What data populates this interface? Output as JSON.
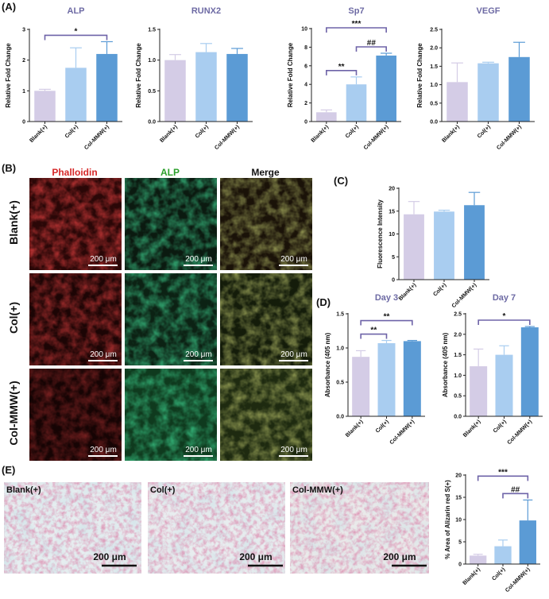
{
  "panels": {
    "A": "(A)",
    "B": "(B)",
    "C": "(C)",
    "D": "(D)",
    "E": "(E)"
  },
  "colors": {
    "blank": "#d4cce6",
    "col": "#a9cdf0",
    "colmmw": "#5b9bd5",
    "title": "#6d6aa4",
    "bracket": "#6e63a8",
    "red": "#d62728",
    "green": "#2ca02c"
  },
  "chart_data": [
    {
      "id": "alp",
      "type": "bar",
      "title": "ALP",
      "ylabel": "Relative Fold Change",
      "categories": [
        "Blank(+)",
        "Col(+)",
        "Col-MMW(+)"
      ],
      "values": [
        1.0,
        1.75,
        2.2
      ],
      "errors": [
        0.05,
        0.65,
        0.4
      ],
      "ylim": [
        0,
        3
      ],
      "yticks": [
        0,
        1,
        2,
        3
      ],
      "yticklabels": [
        "0",
        "1",
        "2",
        "3"
      ],
      "annotations": [
        {
          "from": 0,
          "to": 2,
          "label": "*"
        }
      ]
    },
    {
      "id": "runx2",
      "type": "bar",
      "title": "RUNX2",
      "ylabel": "Relative Fold Change",
      "categories": [
        "Blank(+)",
        "Col(+)",
        "Col-MMW(+)"
      ],
      "values": [
        1.0,
        1.13,
        1.1
      ],
      "errors": [
        0.09,
        0.14,
        0.09
      ],
      "ylim": [
        0,
        1.5
      ],
      "yticks": [
        0,
        0.5,
        1,
        1.5
      ],
      "yticklabels": [
        "0.0",
        "0.5",
        "1.0",
        "1.5"
      ],
      "annotations": []
    },
    {
      "id": "sp7",
      "type": "bar",
      "title": "Sp7",
      "ylabel": "Relative Fold Change",
      "categories": [
        "Blank(+)",
        "Col(+)",
        "Col-MMW(+)"
      ],
      "values": [
        1.0,
        4.0,
        7.1
      ],
      "errors": [
        0.25,
        0.8,
        0.25
      ],
      "ylim": [
        0,
        10
      ],
      "yticks": [
        0,
        2,
        4,
        6,
        8,
        10
      ],
      "yticklabels": [
        "0",
        "2",
        "4",
        "6",
        "8",
        "10"
      ],
      "annotations": [
        {
          "from": 0,
          "to": 2,
          "label": "***"
        },
        {
          "from": 0,
          "to": 1,
          "label": "**"
        },
        {
          "from": 1,
          "to": 2,
          "label": "##"
        }
      ]
    },
    {
      "id": "vegf",
      "type": "bar",
      "title": "VEGF",
      "ylabel": "Relative Fold Change",
      "categories": [
        "Blank(+)",
        "Col(+)",
        "Col-MMW(+)"
      ],
      "values": [
        1.07,
        1.58,
        1.75
      ],
      "errors": [
        0.52,
        0.03,
        0.4
      ],
      "ylim": [
        0,
        2.5
      ],
      "yticks": [
        0,
        0.5,
        1,
        1.5,
        2,
        2.5
      ],
      "yticklabels": [
        "0.0",
        "0.5",
        "1.0",
        "1.5",
        "2.0",
        "2.5"
      ],
      "annotations": []
    },
    {
      "id": "fluor",
      "type": "bar",
      "title": "",
      "ylabel": "Fluorescence Intensity",
      "categories": [
        "Blank(+)",
        "Col(+)",
        "Col-MMW(+)"
      ],
      "values": [
        14.3,
        14.9,
        16.3
      ],
      "errors": [
        2.8,
        0.3,
        2.8
      ],
      "ylim": [
        0,
        20
      ],
      "yticks": [
        0,
        5,
        10,
        15,
        20
      ],
      "yticklabels": [
        "0",
        "5",
        "10",
        "15",
        "20"
      ],
      "annotations": []
    },
    {
      "id": "day3",
      "type": "bar",
      "title": "Day 3",
      "ylabel": "Absorbance (405 nm)",
      "categories": [
        "Blank(+)",
        "Col(+)",
        "Col-MMW(+)"
      ],
      "values": [
        0.87,
        1.07,
        1.1
      ],
      "errors": [
        0.09,
        0.04,
        0.01
      ],
      "ylim": [
        0,
        1.5
      ],
      "yticks": [
        0,
        0.5,
        1,
        1.5
      ],
      "yticklabels": [
        "0.0",
        "0.5",
        "1.0",
        "1.5"
      ],
      "annotations": [
        {
          "from": 0,
          "to": 2,
          "label": "**"
        },
        {
          "from": 0,
          "to": 1,
          "label": "**"
        }
      ]
    },
    {
      "id": "day7",
      "type": "bar",
      "title": "Day 7",
      "ylabel": "Absorbance (405 nm)",
      "categories": [
        "Blank(+)",
        "Col(+)",
        "Col-MMW(+)"
      ],
      "values": [
        1.22,
        1.5,
        2.17
      ],
      "errors": [
        0.42,
        0.22,
        0.02
      ],
      "ylim": [
        0,
        2.5
      ],
      "yticks": [
        0,
        0.5,
        1,
        1.5,
        2,
        2.5
      ],
      "yticklabels": [
        "0.0",
        "0.5",
        "1.0",
        "1.5",
        "2.0",
        "2.5"
      ],
      "annotations": [
        {
          "from": 0,
          "to": 2,
          "label": "*"
        }
      ]
    },
    {
      "id": "alizarin",
      "type": "bar",
      "title": "",
      "ylabel": "% Area of Alizarin red S(+)",
      "categories": [
        "Blank(+)",
        "Col(+)",
        "Col-MMW(+)"
      ],
      "values": [
        1.9,
        4.0,
        9.8
      ],
      "errors": [
        0.3,
        1.4,
        4.6
      ],
      "ylim": [
        0,
        20
      ],
      "yticks": [
        0,
        5,
        10,
        15,
        20
      ],
      "yticklabels": [
        "0",
        "5",
        "10",
        "15",
        "20"
      ],
      "annotations": [
        {
          "from": 0,
          "to": 2,
          "label": "***"
        },
        {
          "from": 1,
          "to": 2,
          "label": "##"
        }
      ]
    }
  ],
  "fluorescence": {
    "stains": [
      "Phalloidin",
      "ALP",
      "Merge"
    ],
    "groups": [
      "Blank(+)",
      "Col(+)",
      "Col-MMW(+)"
    ],
    "scale_bar": "200 μm"
  },
  "alizarin_images": {
    "groups": [
      "Blank(+)",
      "Col(+)",
      "Col-MMW(+)"
    ],
    "scale_bar": "200 μm"
  }
}
